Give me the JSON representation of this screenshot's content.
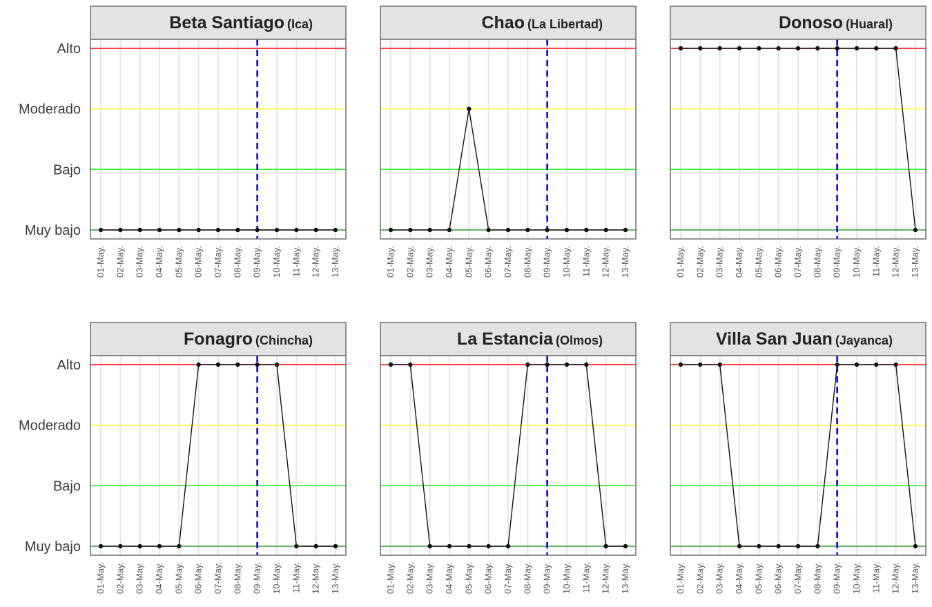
{
  "chart_data": {
    "type": "line",
    "layout": "faceted 2x3",
    "x": [
      "01-May.",
      "02-May.",
      "03-May.",
      "04-May.",
      "05-May.",
      "06-May.",
      "07-May.",
      "08-May.",
      "09-May.",
      "10-May.",
      "11-May.",
      "12-May.",
      "13-May."
    ],
    "y_levels": [
      "Muy bajo",
      "Bajo",
      "Moderado",
      "Alto"
    ],
    "reference_lines": [
      {
        "level": "Alto",
        "color": "#ff0000"
      },
      {
        "level": "Moderado",
        "color": "#ffff33"
      },
      {
        "level": "Bajo",
        "color": "#33ee33"
      },
      {
        "level": "Muy bajo",
        "color": "#2e9e2e"
      }
    ],
    "marker_date": {
      "x": "09-May.",
      "color": "#0000ee",
      "style": "dashed"
    },
    "grid": "vertical",
    "panels": [
      {
        "name": "Beta Santiago",
        "location": "(Ica)",
        "values": [
          "Muy bajo",
          "Muy bajo",
          "Muy bajo",
          "Muy bajo",
          "Muy bajo",
          "Muy bajo",
          "Muy bajo",
          "Muy bajo",
          "Muy bajo",
          "Muy bajo",
          "Muy bajo",
          "Muy bajo",
          "Muy bajo"
        ]
      },
      {
        "name": "Chao",
        "location": "(La Libertad)",
        "values": [
          "Muy bajo",
          "Muy bajo",
          "Muy bajo",
          "Muy bajo",
          "Moderado",
          "Muy bajo",
          "Muy bajo",
          "Muy bajo",
          "Muy bajo",
          "Muy bajo",
          "Muy bajo",
          "Muy bajo",
          "Muy bajo"
        ]
      },
      {
        "name": "Donoso",
        "location": "(Huaral)",
        "values": [
          "Alto",
          "Alto",
          "Alto",
          "Alto",
          "Alto",
          "Alto",
          "Alto",
          "Alto",
          "Alto",
          "Alto",
          "Alto",
          "Alto",
          "Muy bajo"
        ]
      },
      {
        "name": "Fonagro",
        "location": "(Chincha)",
        "values": [
          "Muy bajo",
          "Muy bajo",
          "Muy bajo",
          "Muy bajo",
          "Muy bajo",
          "Alto",
          "Alto",
          "Alto",
          "Alto",
          "Alto",
          "Muy bajo",
          "Muy bajo",
          "Muy bajo"
        ]
      },
      {
        "name": "La Estancia",
        "location": "(Olmos)",
        "values": [
          "Alto",
          "Alto",
          "Muy bajo",
          "Muy bajo",
          "Muy bajo",
          "Muy bajo",
          "Muy bajo",
          "Alto",
          "Alto",
          "Alto",
          "Alto",
          "Muy bajo",
          "Muy bajo"
        ]
      },
      {
        "name": "Villa San Juan",
        "location": "(Jayanca)",
        "values": [
          "Alto",
          "Alto",
          "Alto",
          "Muy bajo",
          "Muy bajo",
          "Muy bajo",
          "Muy bajo",
          "Muy bajo",
          "Alto",
          "Alto",
          "Alto",
          "Alto",
          "Muy bajo"
        ]
      }
    ]
  }
}
